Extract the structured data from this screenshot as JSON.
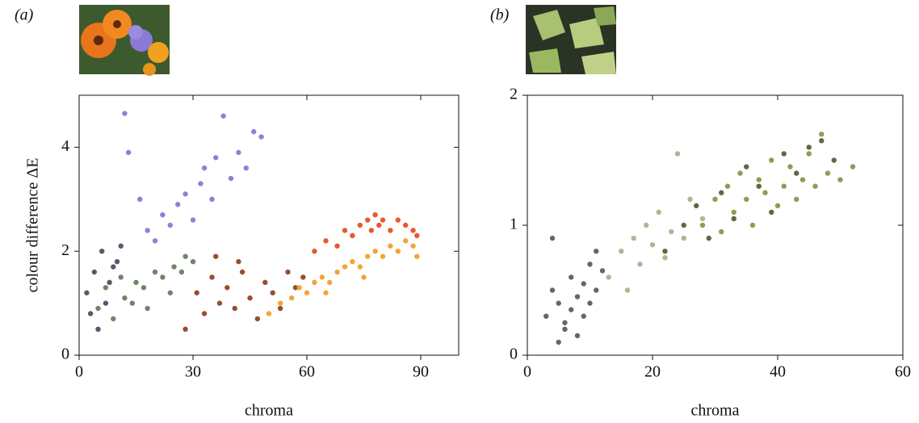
{
  "chart_data": [
    {
      "type": "scatter",
      "panel_label": "(a)",
      "x_label": "chroma",
      "y_label": "colour difference ΔE",
      "xlim": [
        0,
        100
      ],
      "ylim": [
        0,
        5
      ],
      "xticks": [
        0,
        30,
        60,
        90
      ],
      "yticks": [
        0,
        2,
        4
      ],
      "series": [
        {
          "color": "#8a6fd6",
          "x": [
            12,
            13,
            16,
            18,
            20,
            22,
            24,
            26,
            28,
            30,
            32,
            33,
            35,
            36,
            38,
            40,
            42,
            44,
            46,
            48
          ],
          "values": [
            4.65,
            3.9,
            3.0,
            2.4,
            2.2,
            2.7,
            2.5,
            2.9,
            3.1,
            2.6,
            3.3,
            3.6,
            3.0,
            3.8,
            4.6,
            3.4,
            3.9,
            3.6,
            4.3,
            4.2
          ]
        },
        {
          "color": "#4a4560",
          "x": [
            2,
            4,
            6,
            8,
            10,
            3,
            5,
            7,
            9,
            11
          ],
          "values": [
            1.2,
            1.6,
            2.0,
            1.4,
            1.8,
            0.8,
            0.5,
            1.0,
            1.7,
            2.1
          ]
        },
        {
          "color": "#5d7a55",
          "x": [
            5,
            7,
            9,
            11,
            12,
            14,
            15,
            17,
            18,
            20,
            22,
            24,
            25,
            27,
            28,
            30
          ],
          "values": [
            0.9,
            1.3,
            0.7,
            1.5,
            1.1,
            1.0,
            1.4,
            1.3,
            0.9,
            1.6,
            1.5,
            1.2,
            1.7,
            1.6,
            1.9,
            1.8
          ]
        },
        {
          "color": "#8b3b18",
          "x": [
            28,
            31,
            33,
            35,
            37,
            39,
            41,
            43,
            45,
            47,
            49,
            51,
            53,
            55,
            57,
            59,
            36,
            42
          ],
          "values": [
            0.5,
            1.2,
            0.8,
            1.5,
            1.0,
            1.3,
            0.9,
            1.6,
            1.1,
            0.7,
            1.4,
            1.2,
            0.9,
            1.6,
            1.3,
            1.5,
            1.9,
            1.8
          ]
        },
        {
          "color": "#f39a1e",
          "x": [
            50,
            53,
            56,
            58,
            60,
            62,
            64,
            66,
            68,
            70,
            72,
            74,
            76,
            78,
            80,
            82,
            84,
            86,
            88,
            89,
            65,
            75
          ],
          "values": [
            0.8,
            1.0,
            1.1,
            1.3,
            1.2,
            1.4,
            1.5,
            1.4,
            1.6,
            1.7,
            1.8,
            1.7,
            1.9,
            2.0,
            1.9,
            2.1,
            2.0,
            2.2,
            2.1,
            1.9,
            1.2,
            1.5
          ]
        },
        {
          "color": "#e5471a",
          "x": [
            62,
            65,
            68,
            70,
            72,
            74,
            76,
            77,
            78,
            79,
            80,
            82,
            84,
            86,
            88,
            89
          ],
          "values": [
            2.0,
            2.2,
            2.1,
            2.4,
            2.3,
            2.5,
            2.6,
            2.4,
            2.7,
            2.5,
            2.6,
            2.4,
            2.6,
            2.5,
            2.4,
            2.3
          ]
        }
      ]
    },
    {
      "type": "scatter",
      "panel_label": "(b)",
      "x_label": "chroma",
      "xlim": [
        0,
        60
      ],
      "ylim": [
        0,
        2
      ],
      "xticks": [
        0,
        20,
        40,
        60
      ],
      "yticks": [
        0,
        1,
        2
      ],
      "series": [
        {
          "color": "#5e5252",
          "x": [
            3,
            4,
            5,
            5,
            6,
            7,
            7,
            8,
            8,
            9,
            9,
            10,
            10,
            11,
            11,
            12,
            4,
            6
          ],
          "values": [
            0.3,
            0.5,
            0.1,
            0.4,
            0.2,
            0.6,
            0.35,
            0.15,
            0.45,
            0.3,
            0.55,
            0.4,
            0.7,
            0.5,
            0.8,
            0.65,
            0.9,
            0.25
          ]
        },
        {
          "color": "#b0a888",
          "x": [
            13,
            15,
            16,
            17,
            18,
            19,
            20,
            21,
            22,
            23,
            24,
            25,
            26,
            28
          ],
          "values": [
            0.6,
            0.8,
            0.5,
            0.9,
            0.7,
            1.0,
            0.85,
            1.1,
            0.75,
            0.95,
            1.55,
            0.9,
            1.2,
            1.05
          ]
        },
        {
          "color": "#8f8c3e",
          "x": [
            28,
            30,
            31,
            32,
            33,
            34,
            35,
            36,
            37,
            38,
            39,
            40,
            41,
            42,
            43,
            44,
            45,
            46,
            47,
            48,
            50,
            52
          ],
          "values": [
            1.0,
            1.2,
            0.95,
            1.3,
            1.1,
            1.4,
            1.2,
            1.0,
            1.35,
            1.25,
            1.5,
            1.15,
            1.3,
            1.45,
            1.2,
            1.35,
            1.55,
            1.3,
            1.7,
            1.4,
            1.35,
            1.45
          ]
        },
        {
          "color": "#4c5a28",
          "x": [
            22,
            25,
            27,
            29,
            31,
            33,
            35,
            37,
            39,
            41,
            43,
            45,
            47,
            49
          ],
          "values": [
            0.8,
            1.0,
            1.15,
            0.9,
            1.25,
            1.05,
            1.45,
            1.3,
            1.1,
            1.55,
            1.4,
            1.6,
            1.65,
            1.5
          ]
        }
      ]
    }
  ]
}
